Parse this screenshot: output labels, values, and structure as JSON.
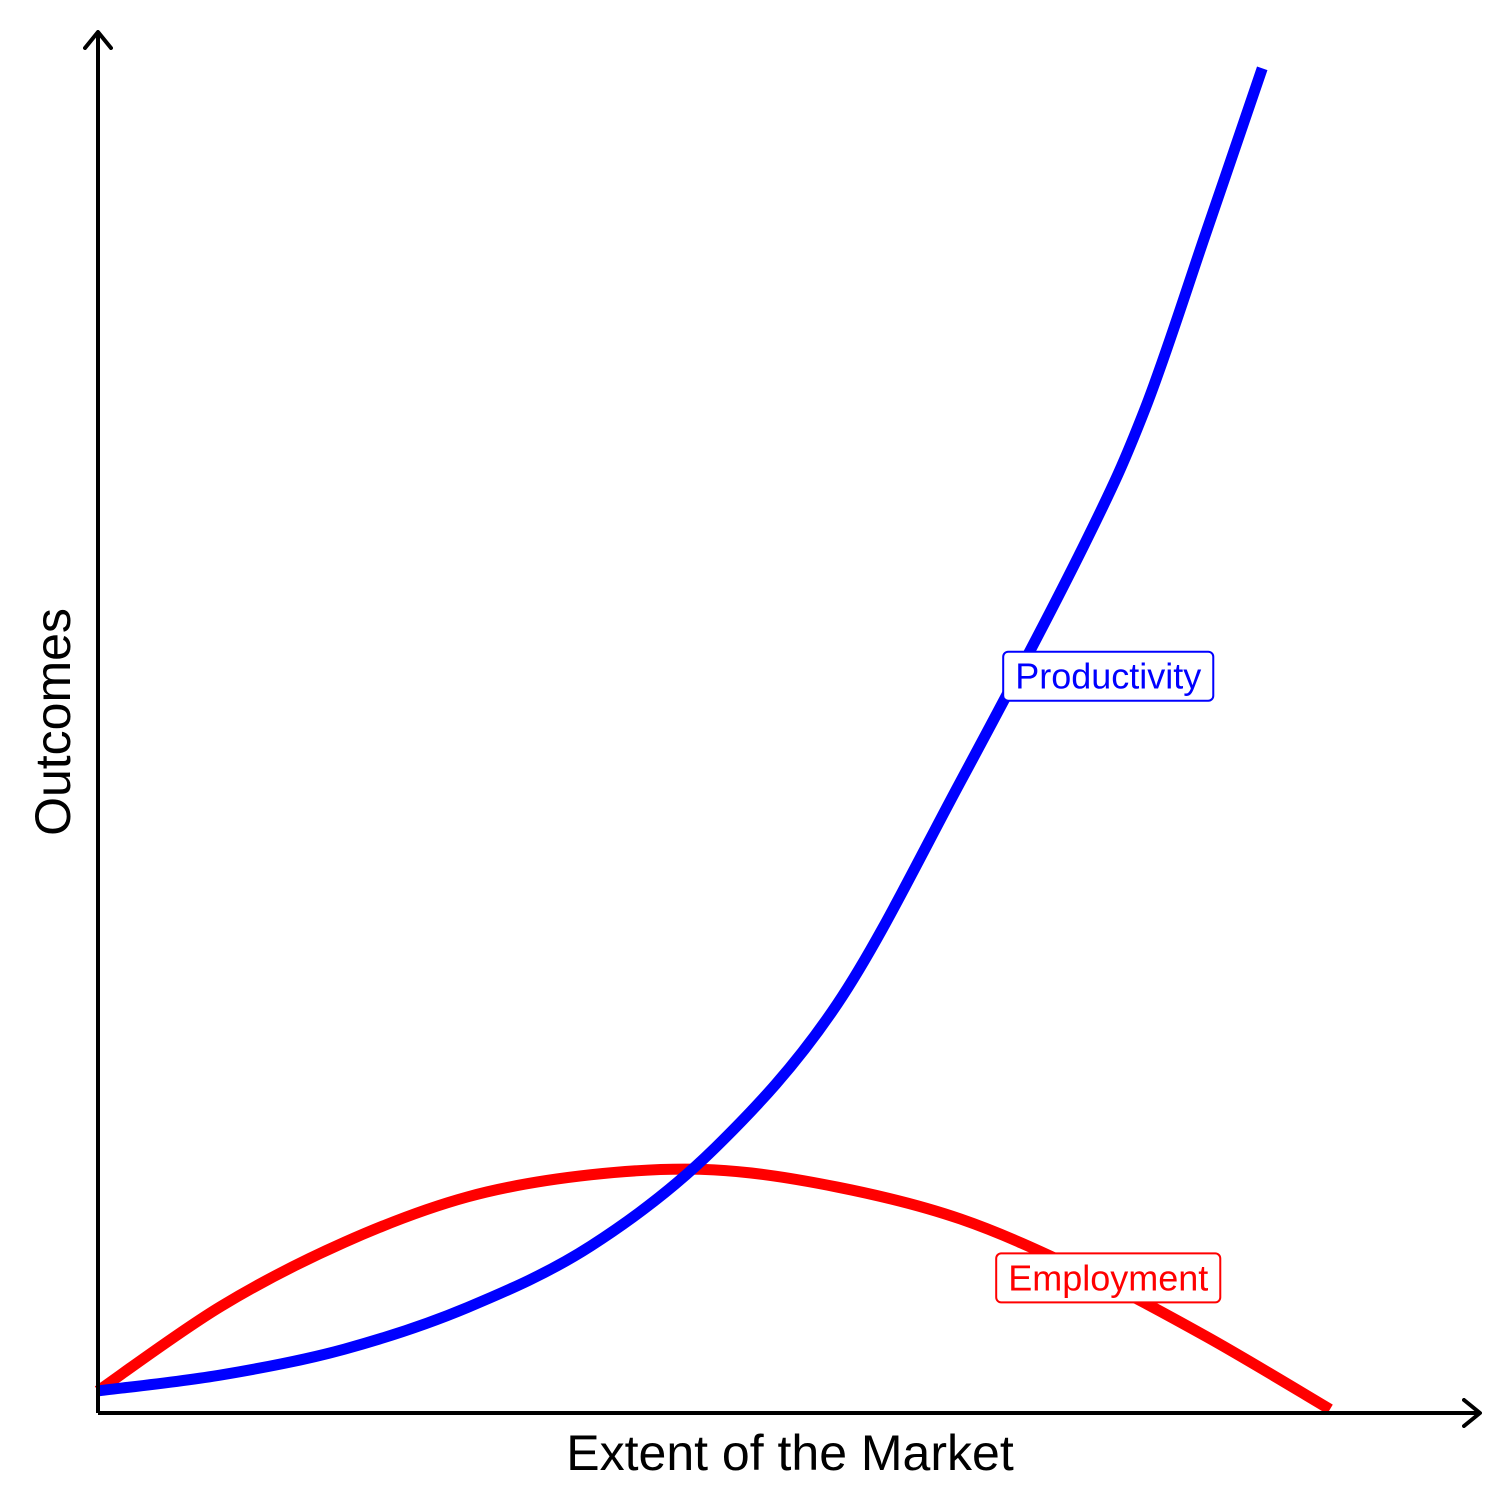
{
  "chart_data": {
    "type": "line",
    "title": "",
    "xlabel": "Extent of the Market",
    "ylabel": "Outcomes",
    "xlim": [
      0,
      100
    ],
    "ylim": [
      0,
      100
    ],
    "grid": false,
    "ticks": false,
    "series": [
      {
        "name": "Productivity",
        "color": "#0000ff",
        "x": [
          0,
          10,
          20,
          30,
          40,
          50,
          60,
          70,
          80,
          85,
          90,
          94.5
        ],
        "y": [
          1.8,
          3.1,
          5.2,
          8.6,
          13.6,
          21.5,
          33.3,
          51.4,
          70.6,
          81.8,
          96.3,
          109.5
        ]
      },
      {
        "name": "Employment",
        "color": "#ff0000",
        "x": [
          0,
          10,
          20,
          30,
          40,
          50,
          60,
          70,
          80,
          90,
          100
        ],
        "y": [
          1.8,
          8.7,
          13.9,
          17.6,
          19.4,
          19.8,
          18.4,
          15.8,
          11.5,
          6.2,
          0.3
        ]
      }
    ],
    "annotations": [
      {
        "text": "Productivity",
        "color": "#0000ff",
        "at_x": 82,
        "at_y": 60
      },
      {
        "text": "Employment",
        "color": "#ff0000",
        "at_x": 82,
        "at_y": 11
      }
    ]
  }
}
